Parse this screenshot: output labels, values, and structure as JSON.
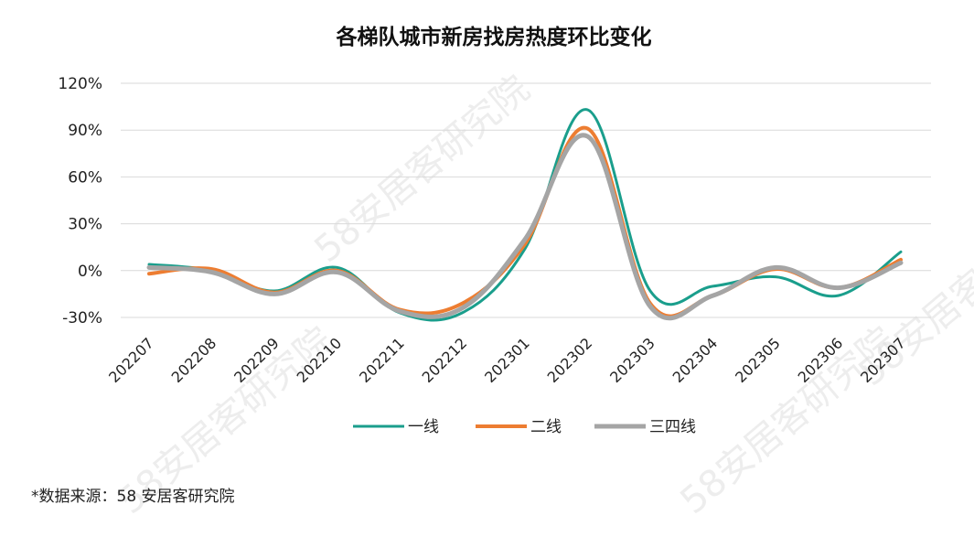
{
  "chart_data": {
    "type": "line",
    "title": "各梯队城市新房找房热度环比变化",
    "xlabel": "",
    "ylabel": "",
    "x": [
      "202207",
      "202208",
      "202209",
      "202210",
      "202211",
      "202212",
      "202301",
      "202302",
      "202303",
      "202304",
      "202305",
      "202306",
      "202307"
    ],
    "ylim": [
      -30,
      120
    ],
    "yticks": [
      -30,
      0,
      30,
      60,
      90,
      120
    ],
    "ytick_labels": [
      "-30%",
      "0%",
      "30%",
      "60%",
      "90%",
      "120%"
    ],
    "grid": true,
    "legend_position": "bottom",
    "series": [
      {
        "name": "一线",
        "color": "#1a9e8c",
        "values": [
          4,
          0,
          -13,
          2,
          -27,
          -27,
          14,
          103,
          -13,
          -10,
          -4,
          -16,
          12
        ]
      },
      {
        "name": "二线",
        "color": "#ed7d31",
        "values": [
          -2,
          1,
          -14,
          0,
          -25,
          -21,
          17,
          91,
          -21,
          -16,
          1,
          -11,
          7
        ]
      },
      {
        "name": "三四线",
        "color": "#a5a5a5",
        "values": [
          2,
          -1,
          -15,
          -1,
          -26,
          -24,
          20,
          86,
          -23,
          -16,
          2,
          -11,
          5
        ]
      }
    ]
  },
  "footer": {
    "source": "*数据来源：58 安居客研究院"
  },
  "watermark": {
    "text": "58安居客研究院"
  }
}
